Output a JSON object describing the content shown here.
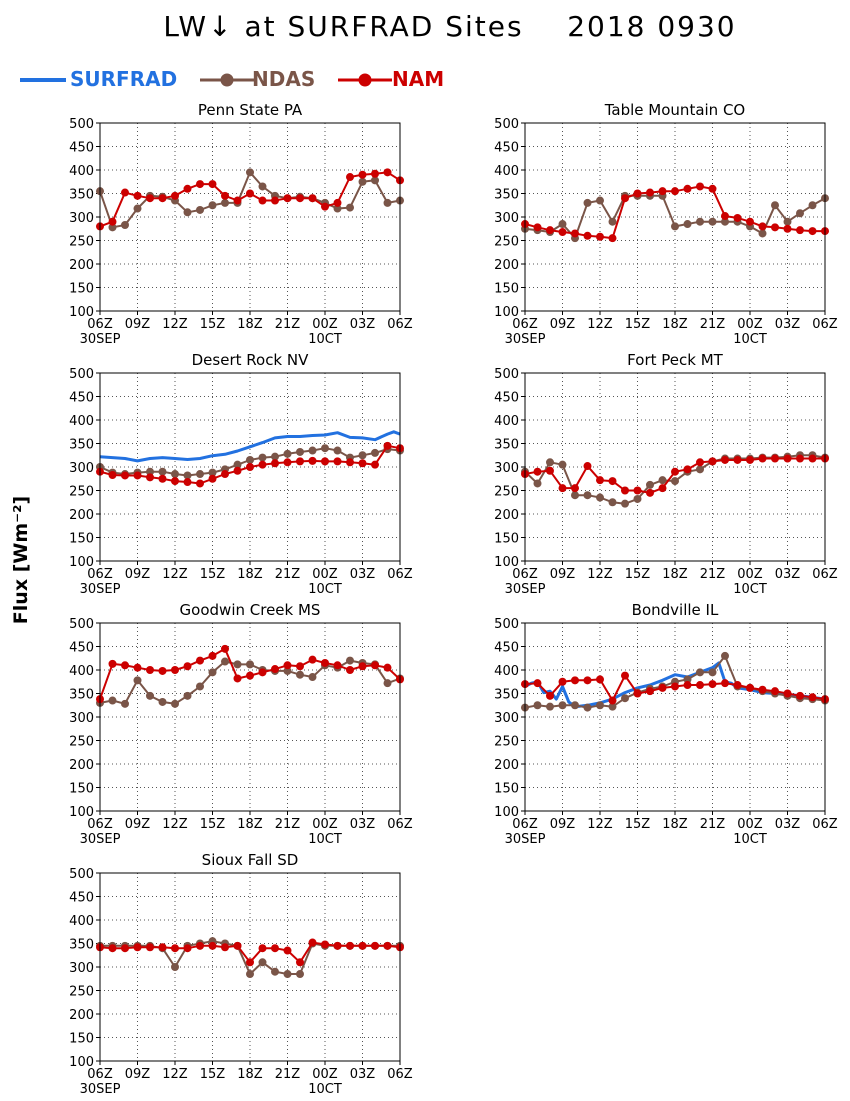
{
  "title": "LW↓ at SURFRAD Sites    2018 0930",
  "ylabel": "Flux [Wm⁻²]",
  "legend": [
    {
      "name": "SURFRAD",
      "color": "#2271e0",
      "marker": false
    },
    {
      "name": "NDAS",
      "color": "#7a5548",
      "marker": true
    },
    {
      "name": "NAM",
      "color": "#cc0000",
      "marker": true
    }
  ],
  "axes": {
    "ylim": [
      100,
      500
    ],
    "yticks": [
      100,
      150,
      200,
      250,
      300,
      350,
      400,
      450,
      500
    ],
    "xlim": [
      0,
      24
    ],
    "xtick_labels": [
      "06Z",
      "09Z",
      "12Z",
      "15Z",
      "18Z",
      "21Z",
      "00Z",
      "03Z",
      "06Z"
    ],
    "date_labels": [
      {
        "label": "30SEP",
        "at": "06Z"
      },
      {
        "label": "10CT",
        "at": "00Z"
      }
    ],
    "grid": true
  },
  "chart_data": [
    {
      "type": "line",
      "title": "Penn State PA",
      "x_unit": "hours after 06Z 30SEP",
      "series": [
        {
          "name": "NDAS",
          "x": [
            0,
            1,
            2,
            3,
            4,
            5,
            6,
            7,
            8,
            9,
            10,
            11,
            12,
            13,
            14,
            15,
            16,
            17,
            18,
            19,
            20,
            21,
            22,
            23,
            24
          ],
          "values": [
            355,
            278,
            283,
            318,
            345,
            343,
            335,
            310,
            315,
            325,
            330,
            330,
            395,
            365,
            345,
            340,
            343,
            340,
            330,
            318,
            320,
            375,
            378,
            330,
            335
          ]
        },
        {
          "name": "NAM",
          "x": [
            0,
            1,
            2,
            3,
            4,
            5,
            6,
            7,
            8,
            9,
            10,
            11,
            12,
            13,
            14,
            15,
            16,
            17,
            18,
            19,
            20,
            21,
            22,
            23,
            24
          ],
          "values": [
            280,
            290,
            352,
            345,
            340,
            340,
            345,
            360,
            370,
            370,
            345,
            335,
            350,
            335,
            335,
            340,
            340,
            340,
            322,
            330,
            385,
            390,
            392,
            395,
            378
          ]
        }
      ]
    },
    {
      "type": "line",
      "title": "Table Mountain CO",
      "x_unit": "hours after 06Z 30SEP",
      "series": [
        {
          "name": "NDAS",
          "x": [
            0,
            1,
            2,
            3,
            4,
            5,
            6,
            7,
            8,
            9,
            10,
            11,
            12,
            13,
            14,
            15,
            16,
            17,
            18,
            19,
            20,
            21,
            22,
            23,
            24
          ],
          "values": [
            275,
            272,
            268,
            285,
            255,
            330,
            335,
            290,
            345,
            345,
            345,
            345,
            280,
            285,
            290,
            290,
            290,
            290,
            280,
            265,
            325,
            290,
            308,
            325,
            340
          ]
        },
        {
          "name": "NAM",
          "x": [
            0,
            1,
            2,
            3,
            4,
            5,
            6,
            7,
            8,
            9,
            10,
            11,
            12,
            13,
            14,
            15,
            16,
            17,
            18,
            19,
            20,
            21,
            22,
            23,
            24
          ],
          "values": [
            285,
            278,
            272,
            268,
            265,
            260,
            258,
            255,
            340,
            350,
            352,
            355,
            355,
            360,
            365,
            360,
            302,
            298,
            290,
            280,
            278,
            275,
            272,
            270,
            270
          ]
        }
      ]
    },
    {
      "type": "line",
      "title": "Desert Rock NV",
      "x_unit": "hours after 06Z 30SEP",
      "series": [
        {
          "name": "SURFRAD",
          "x": [
            0,
            1,
            2,
            3,
            4,
            5,
            6,
            7,
            8,
            9,
            10,
            11,
            12,
            13,
            14,
            15,
            16,
            17,
            18,
            19,
            20,
            21,
            22,
            23,
            23.5,
            24
          ],
          "values": [
            322,
            320,
            318,
            313,
            318,
            320,
            318,
            316,
            318,
            324,
            327,
            334,
            343,
            352,
            362,
            365,
            365,
            367,
            368,
            373,
            363,
            362,
            358,
            370,
            375,
            370
          ]
        },
        {
          "name": "NDAS",
          "x": [
            0,
            1,
            2,
            3,
            4,
            5,
            6,
            7,
            8,
            9,
            10,
            11,
            12,
            13,
            14,
            15,
            16,
            17,
            18,
            19,
            20,
            21,
            22,
            23,
            24
          ],
          "values": [
            300,
            288,
            285,
            288,
            290,
            290,
            285,
            282,
            285,
            288,
            295,
            305,
            315,
            320,
            322,
            328,
            332,
            335,
            340,
            335,
            320,
            325,
            330,
            338,
            335
          ]
        },
        {
          "name": "NAM",
          "x": [
            0,
            1,
            2,
            3,
            4,
            5,
            6,
            7,
            8,
            9,
            10,
            11,
            12,
            13,
            14,
            15,
            16,
            17,
            18,
            19,
            20,
            21,
            22,
            23,
            24
          ],
          "values": [
            290,
            283,
            282,
            282,
            278,
            275,
            270,
            268,
            265,
            275,
            285,
            292,
            300,
            305,
            308,
            310,
            312,
            313,
            312,
            312,
            310,
            308,
            305,
            345,
            340
          ]
        }
      ]
    },
    {
      "type": "line",
      "title": "Fort Peck MT",
      "x_unit": "hours after 06Z 30SEP",
      "series": [
        {
          "name": "NDAS",
          "x": [
            0,
            1,
            2,
            3,
            4,
            5,
            6,
            7,
            8,
            9,
            10,
            11,
            12,
            13,
            14,
            15,
            16,
            17,
            18,
            19,
            20,
            21,
            22,
            23,
            24
          ],
          "values": [
            290,
            265,
            310,
            305,
            240,
            240,
            235,
            225,
            222,
            232,
            262,
            272,
            270,
            290,
            295,
            312,
            318,
            318,
            318,
            320,
            320,
            322,
            325,
            325,
            320
          ]
        },
        {
          "name": "NAM",
          "x": [
            0,
            1,
            2,
            3,
            4,
            5,
            6,
            7,
            8,
            9,
            10,
            11,
            12,
            13,
            14,
            15,
            16,
            17,
            18,
            19,
            20,
            21,
            22,
            23,
            24
          ],
          "values": [
            285,
            290,
            292,
            255,
            255,
            302,
            272,
            270,
            250,
            250,
            245,
            255,
            290,
            295,
            310,
            312,
            315,
            315,
            315,
            318,
            318,
            318,
            318,
            318,
            318
          ]
        }
      ]
    },
    {
      "type": "line",
      "title": "Goodwin Creek MS",
      "x_unit": "hours after 06Z 30SEP",
      "series": [
        {
          "name": "NDAS",
          "x": [
            0,
            1,
            2,
            3,
            4,
            5,
            6,
            7,
            8,
            9,
            10,
            11,
            12,
            13,
            14,
            15,
            16,
            17,
            18,
            19,
            20,
            21,
            22,
            23,
            24
          ],
          "values": [
            330,
            335,
            328,
            378,
            345,
            332,
            328,
            345,
            365,
            395,
            418,
            412,
            412,
            400,
            398,
            398,
            390,
            385,
            410,
            405,
            420,
            415,
            412,
            372,
            382
          ]
        },
        {
          "name": "NAM",
          "x": [
            0,
            1,
            2,
            3,
            4,
            5,
            6,
            7,
            8,
            9,
            10,
            11,
            12,
            13,
            14,
            15,
            16,
            17,
            18,
            19,
            20,
            21,
            22,
            23,
            24
          ],
          "values": [
            338,
            413,
            410,
            405,
            400,
            398,
            400,
            408,
            420,
            430,
            445,
            382,
            388,
            395,
            402,
            410,
            408,
            422,
            415,
            410,
            400,
            408,
            410,
            405,
            380
          ]
        }
      ]
    },
    {
      "type": "line",
      "title": "Bondville IL",
      "x_unit": "hours after 06Z 30SEP",
      "series": [
        {
          "name": "SURFRAD",
          "x": [
            0,
            0.5,
            1,
            1.5,
            2,
            2.5,
            3,
            3.5,
            4,
            5,
            6,
            7,
            8,
            9,
            10,
            11,
            12,
            13,
            14,
            15,
            15.5,
            16,
            16.5,
            17,
            18,
            19,
            20,
            21,
            22,
            23,
            24
          ],
          "values": [
            365,
            372,
            375,
            352,
            355,
            338,
            365,
            332,
            322,
            325,
            330,
            338,
            352,
            362,
            368,
            378,
            390,
            385,
            395,
            405,
            415,
            375,
            372,
            362,
            358,
            352,
            350,
            348,
            345,
            342,
            338
          ]
        },
        {
          "name": "NDAS",
          "x": [
            0,
            1,
            2,
            3,
            4,
            5,
            6,
            7,
            8,
            9,
            10,
            11,
            12,
            13,
            14,
            15,
            16,
            17,
            18,
            19,
            20,
            21,
            22,
            23,
            24
          ],
          "values": [
            320,
            325,
            322,
            325,
            325,
            320,
            325,
            322,
            340,
            352,
            360,
            365,
            375,
            380,
            395,
            395,
            430,
            365,
            362,
            355,
            350,
            345,
            340,
            338,
            335
          ]
        },
        {
          "name": "NAM",
          "x": [
            0,
            1,
            2,
            3,
            4,
            5,
            6,
            7,
            8,
            9,
            10,
            11,
            12,
            13,
            14,
            15,
            16,
            17,
            18,
            19,
            20,
            21,
            22,
            23,
            24
          ],
          "values": [
            370,
            372,
            345,
            375,
            378,
            378,
            380,
            335,
            388,
            350,
            355,
            362,
            365,
            368,
            368,
            370,
            372,
            368,
            362,
            358,
            355,
            350,
            345,
            342,
            338
          ]
        }
      ]
    },
    {
      "type": "line",
      "title": "Sioux Fall SD",
      "x_unit": "hours after 06Z 30SEP",
      "series": [
        {
          "name": "NDAS",
          "x": [
            0,
            1,
            2,
            3,
            4,
            5,
            6,
            7,
            8,
            9,
            10,
            11,
            12,
            13,
            14,
            15,
            16,
            17,
            18,
            19,
            20,
            21,
            22,
            23,
            24
          ],
          "values": [
            345,
            345,
            345,
            345,
            345,
            340,
            300,
            345,
            350,
            355,
            350,
            345,
            285,
            310,
            290,
            285,
            285,
            350,
            345,
            345,
            345,
            345,
            345,
            345,
            345
          ]
        },
        {
          "name": "NAM",
          "x": [
            0,
            1,
            2,
            3,
            4,
            5,
            6,
            7,
            8,
            9,
            10,
            11,
            12,
            13,
            14,
            15,
            16,
            17,
            18,
            19,
            20,
            21,
            22,
            23,
            24
          ],
          "values": [
            342,
            340,
            340,
            342,
            342,
            342,
            340,
            340,
            345,
            345,
            342,
            345,
            310,
            340,
            340,
            335,
            310,
            352,
            348,
            345,
            345,
            345,
            345,
            345,
            342
          ]
        }
      ]
    }
  ]
}
